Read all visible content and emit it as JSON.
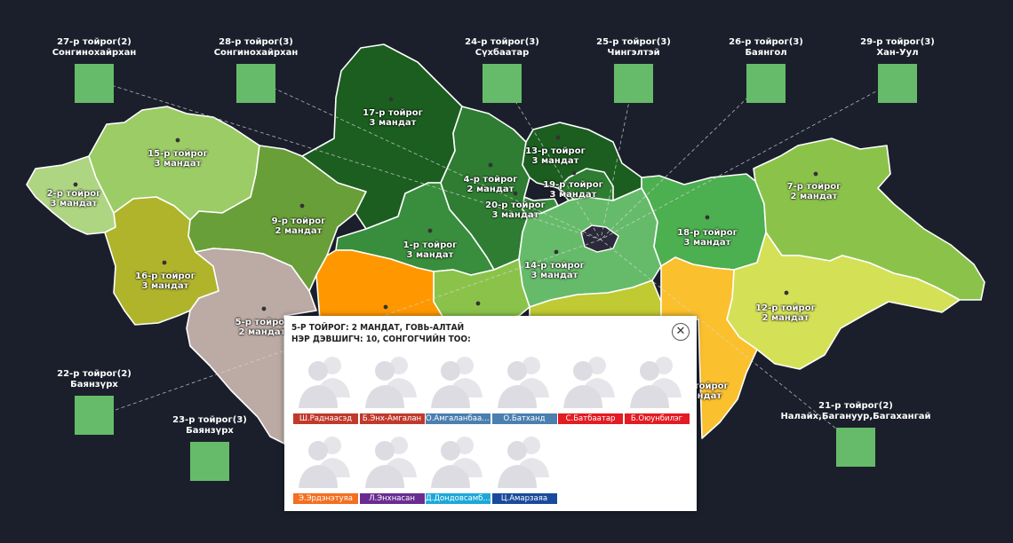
{
  "colors": {
    "background": "#1b1f2b",
    "external_box": "#66bb6a"
  },
  "regions": [
    {
      "id": "r2",
      "label": "2-р тойрог",
      "mandates": "3 мандат",
      "color": "#aed581"
    },
    {
      "id": "r15",
      "label": "15-р тойрог",
      "mandates": "3 мандат",
      "color": "#9ccc65"
    },
    {
      "id": "r16",
      "label": "16-р тойрог",
      "mandates": "3 мандат",
      "color": "#afb42b"
    },
    {
      "id": "r9",
      "label": "9-р тойрог",
      "mandates": "2 мандат",
      "color": "#689f38"
    },
    {
      "id": "r17",
      "label": "17-р тойрог",
      "mandates": "3 мандат",
      "color": "#1b5e20"
    },
    {
      "id": "r1",
      "label": "1-р тойрог",
      "mandates": "3 мандат",
      "color": "#388e3c"
    },
    {
      "id": "r4",
      "label": "4-р тойрог",
      "mandates": "2 мандат",
      "color": "#2e7d32"
    },
    {
      "id": "r13",
      "label": "13-р тойрог",
      "mandates": "3 мандат",
      "color": "#1b5e20"
    },
    {
      "id": "r19",
      "label": "19-р тойрог",
      "mandates": "3 мандат",
      "color": "#2e7d32"
    },
    {
      "id": "r20",
      "label": "20-р тойрог",
      "mandates": "3 мандат",
      "color": "#388e3c"
    },
    {
      "id": "r14",
      "label": "14-р тойрог",
      "mandates": "3 мандат",
      "color": "#66bb6a"
    },
    {
      "id": "r18",
      "label": "18-р тойрог",
      "mandates": "3 мандат",
      "color": "#4caf50"
    },
    {
      "id": "r7",
      "label": "7-р тойрог",
      "mandates": "2 мандат",
      "color": "#8bc34a"
    },
    {
      "id": "r12",
      "label": "12-р тойрог",
      "mandates": "2 мандат",
      "color": "#d4e157"
    },
    {
      "id": "r5",
      "label": "5-р тойрог",
      "mandates": "2 мандат",
      "color": "#bcaaa4"
    }
  ],
  "external": [
    {
      "label": "27-р тойрог(2)",
      "place": "Сонгинохайрхан"
    },
    {
      "label": "28-р тойрог(3)",
      "place": "Сонгинохайрхан"
    },
    {
      "label": "24-р тойрог(3)",
      "place": "Сүхбаатар"
    },
    {
      "label": "25-р тойрог(3)",
      "place": "Чингэлтэй"
    },
    {
      "label": "26-р тойрог(3)",
      "place": "Баянгол"
    },
    {
      "label": "29-р тойрог(3)",
      "place": "Хан-Уул"
    },
    {
      "label": "22-р тойрог(2)",
      "place": "Баянзүрх"
    },
    {
      "label": "23-р тойрог(3)",
      "place": "Баянзүрх"
    },
    {
      "label": "21-р тойрог(2)",
      "place": "Налайх,Багануур,Багахангай"
    }
  ],
  "partial_labels": {
    "r11": "р тойрог",
    "r11_mandates": "андат"
  },
  "popup": {
    "title_line1": "5-Р ТОЙРОГ: 2 МАНДАТ, ГОВЬ-АЛТАЙ",
    "title_line2": "НЭР ДЭВШИГЧ: 10, СОНГОГЧИЙН ТОО:",
    "close_glyph": "✕",
    "candidates": [
      {
        "name": "Ш.Раднаасэд",
        "color": "#c0392b"
      },
      {
        "name": "Б.Энх-Амгалан",
        "color": "#c0392b"
      },
      {
        "name": "О.Амгаланбаатар",
        "color": "#4a7fb0"
      },
      {
        "name": "О.Батханд",
        "color": "#4a7fb0"
      },
      {
        "name": "С.Батбаатар",
        "color": "#e31b23"
      },
      {
        "name": "Б.Оюунбилэг",
        "color": "#e31b23"
      },
      {
        "name": "Э.Эрдэнэтуяа",
        "color": "#f36f21"
      },
      {
        "name": "Л.Энхнасан",
        "color": "#6a2c91"
      },
      {
        "name": "Д.Дондовсамбуу",
        "color": "#1ba8d8"
      },
      {
        "name": "Ц.Амарзаяа",
        "color": "#1a4a9c"
      }
    ]
  }
}
